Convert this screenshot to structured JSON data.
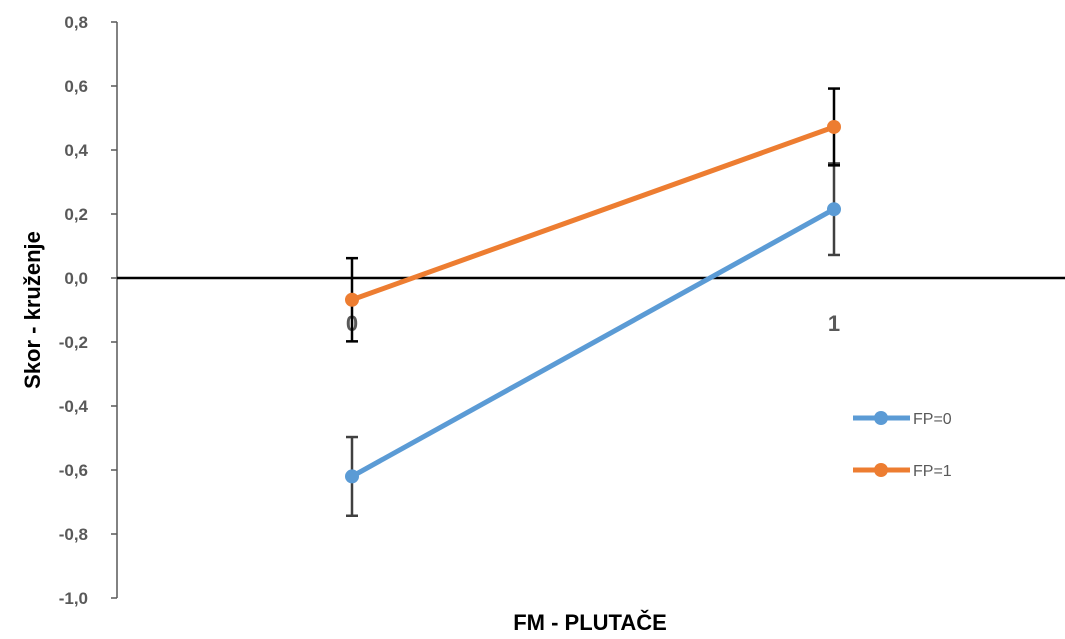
{
  "chart_data": {
    "type": "line",
    "categories": [
      "0",
      "1"
    ],
    "series": [
      {
        "name": "FP=0",
        "values": [
          -0.62,
          0.215
        ],
        "errors": [
          0.123,
          0.143
        ],
        "color": "#5B9BD5"
      },
      {
        "name": "FP=1",
        "values": [
          -0.068,
          0.472
        ],
        "errors": [
          0.13,
          0.12
        ],
        "color": "#ED7D31"
      }
    ],
    "title": "",
    "xlabel": "FM - PLUTAČE",
    "ylabel": "Skor - kruženje",
    "ylim": [
      -1.0,
      0.8
    ],
    "yticks": [
      "-1,0",
      "-0,8",
      "-0,6",
      "-0,4",
      "-0,2",
      "0,0",
      "0,2",
      "0,4",
      "0,6",
      "0,8"
    ],
    "grid": false,
    "legend_position": "right"
  }
}
